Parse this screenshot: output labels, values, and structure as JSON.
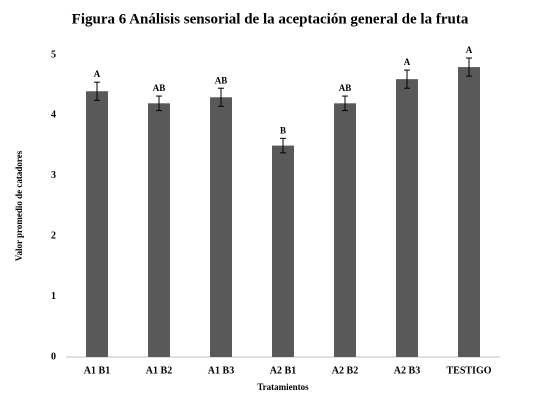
{
  "chart_data": {
    "type": "bar",
    "title": "Figura 6 Análisis sensorial de la aceptación general de la fruta",
    "x_label": "Tratamientos",
    "y_label": "Valor promedio de catadores",
    "categories": [
      "A1 B1",
      "A1 B2",
      "A1 B3",
      "A2 B1",
      "A2 B2",
      "A2 B3",
      "TESTIGO"
    ],
    "values": [
      4.4,
      4.2,
      4.3,
      3.5,
      4.2,
      4.6,
      4.8
    ],
    "errors": [
      0.15,
      0.12,
      0.15,
      0.12,
      0.12,
      0.15,
      0.15
    ],
    "annotations": [
      "A",
      "AB",
      "AB",
      "B",
      "AB",
      "A",
      "A"
    ],
    "color": "#595959",
    "ylim": [
      0,
      5
    ],
    "yticks": [
      0,
      1,
      2,
      3,
      4,
      5
    ],
    "grid": false
  }
}
